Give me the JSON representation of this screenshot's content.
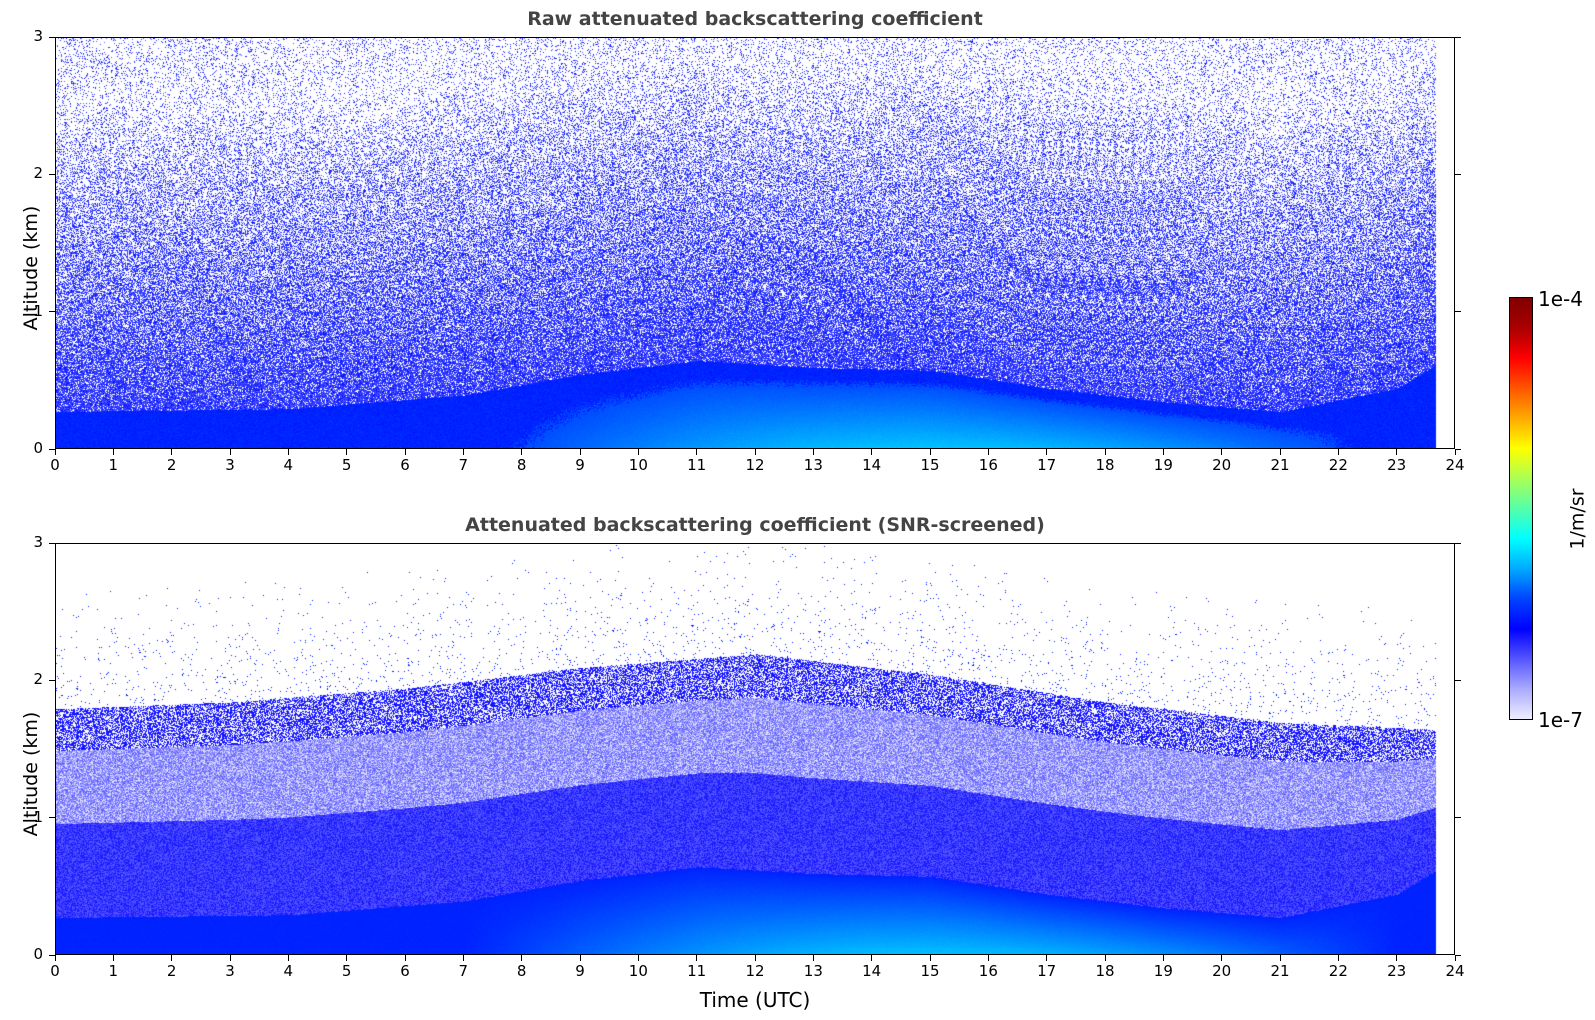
{
  "chart_data": [
    {
      "type": "heatmap",
      "title": "Raw attenuated backscattering coefficient",
      "xlabel": "",
      "ylabel": "Altitude (km)",
      "xlim": [
        0,
        24
      ],
      "ylim": [
        0,
        3
      ],
      "x_ticks": [
        "0",
        "1",
        "2",
        "3",
        "4",
        "5",
        "6",
        "7",
        "8",
        "9",
        "10",
        "11",
        "12",
        "13",
        "14",
        "15",
        "16",
        "17",
        "18",
        "19",
        "20",
        "21",
        "22",
        "23",
        "24"
      ],
      "y_ticks": [
        "0",
        "1",
        "2",
        "3"
      ],
      "data_end_time": 23.65,
      "boundary_layer_top_km": [
        {
          "t": 0,
          "z": 0.28
        },
        {
          "t": 4,
          "z": 0.3
        },
        {
          "t": 7,
          "z": 0.4
        },
        {
          "t": 9,
          "z": 0.55
        },
        {
          "t": 11,
          "z": 0.65
        },
        {
          "t": 13,
          "z": 0.6
        },
        {
          "t": 15,
          "z": 0.58
        },
        {
          "t": 17,
          "z": 0.45
        },
        {
          "t": 19,
          "z": 0.35
        },
        {
          "t": 21,
          "z": 0.28
        },
        {
          "t": 23,
          "z": 0.45
        },
        {
          "t": 23.65,
          "z": 0.62
        }
      ]
    },
    {
      "type": "heatmap",
      "title": "Attenuated backscattering coefficient (SNR-screened)",
      "xlabel": "Time (UTC)",
      "ylabel": "Altitude (km)",
      "xlim": [
        0,
        24
      ],
      "ylim": [
        0,
        3
      ],
      "x_ticks": [
        "0",
        "1",
        "2",
        "3",
        "4",
        "5",
        "6",
        "7",
        "8",
        "9",
        "10",
        "11",
        "12",
        "13",
        "14",
        "15",
        "16",
        "17",
        "18",
        "19",
        "20",
        "21",
        "22",
        "23",
        "24"
      ],
      "y_ticks": [
        "0",
        "1",
        "2",
        "3"
      ],
      "data_end_time": 23.65,
      "screened_signal_top_km": [
        {
          "t": 0,
          "z": 1.8
        },
        {
          "t": 3,
          "z": 1.85
        },
        {
          "t": 6,
          "z": 1.95
        },
        {
          "t": 9,
          "z": 2.1
        },
        {
          "t": 12,
          "z": 2.2
        },
        {
          "t": 15,
          "z": 2.05
        },
        {
          "t": 18,
          "z": 1.85
        },
        {
          "t": 21,
          "z": 1.7
        },
        {
          "t": 23.65,
          "z": 1.65
        }
      ]
    }
  ],
  "colorbar": {
    "max_label": "1e-4",
    "min_label": "1e-7",
    "unit_label": "1/m/sr",
    "scale": "log",
    "colormap": "jet",
    "colors": [
      "#eeeeff",
      "#aaaaff",
      "#5555ff",
      "#0000ff",
      "#0044ff",
      "#00aaff",
      "#00ffff",
      "#55ffaa",
      "#aaff55",
      "#ffff00",
      "#ffaa00",
      "#ff5500",
      "#ff0000",
      "#aa0000",
      "#800000"
    ]
  }
}
